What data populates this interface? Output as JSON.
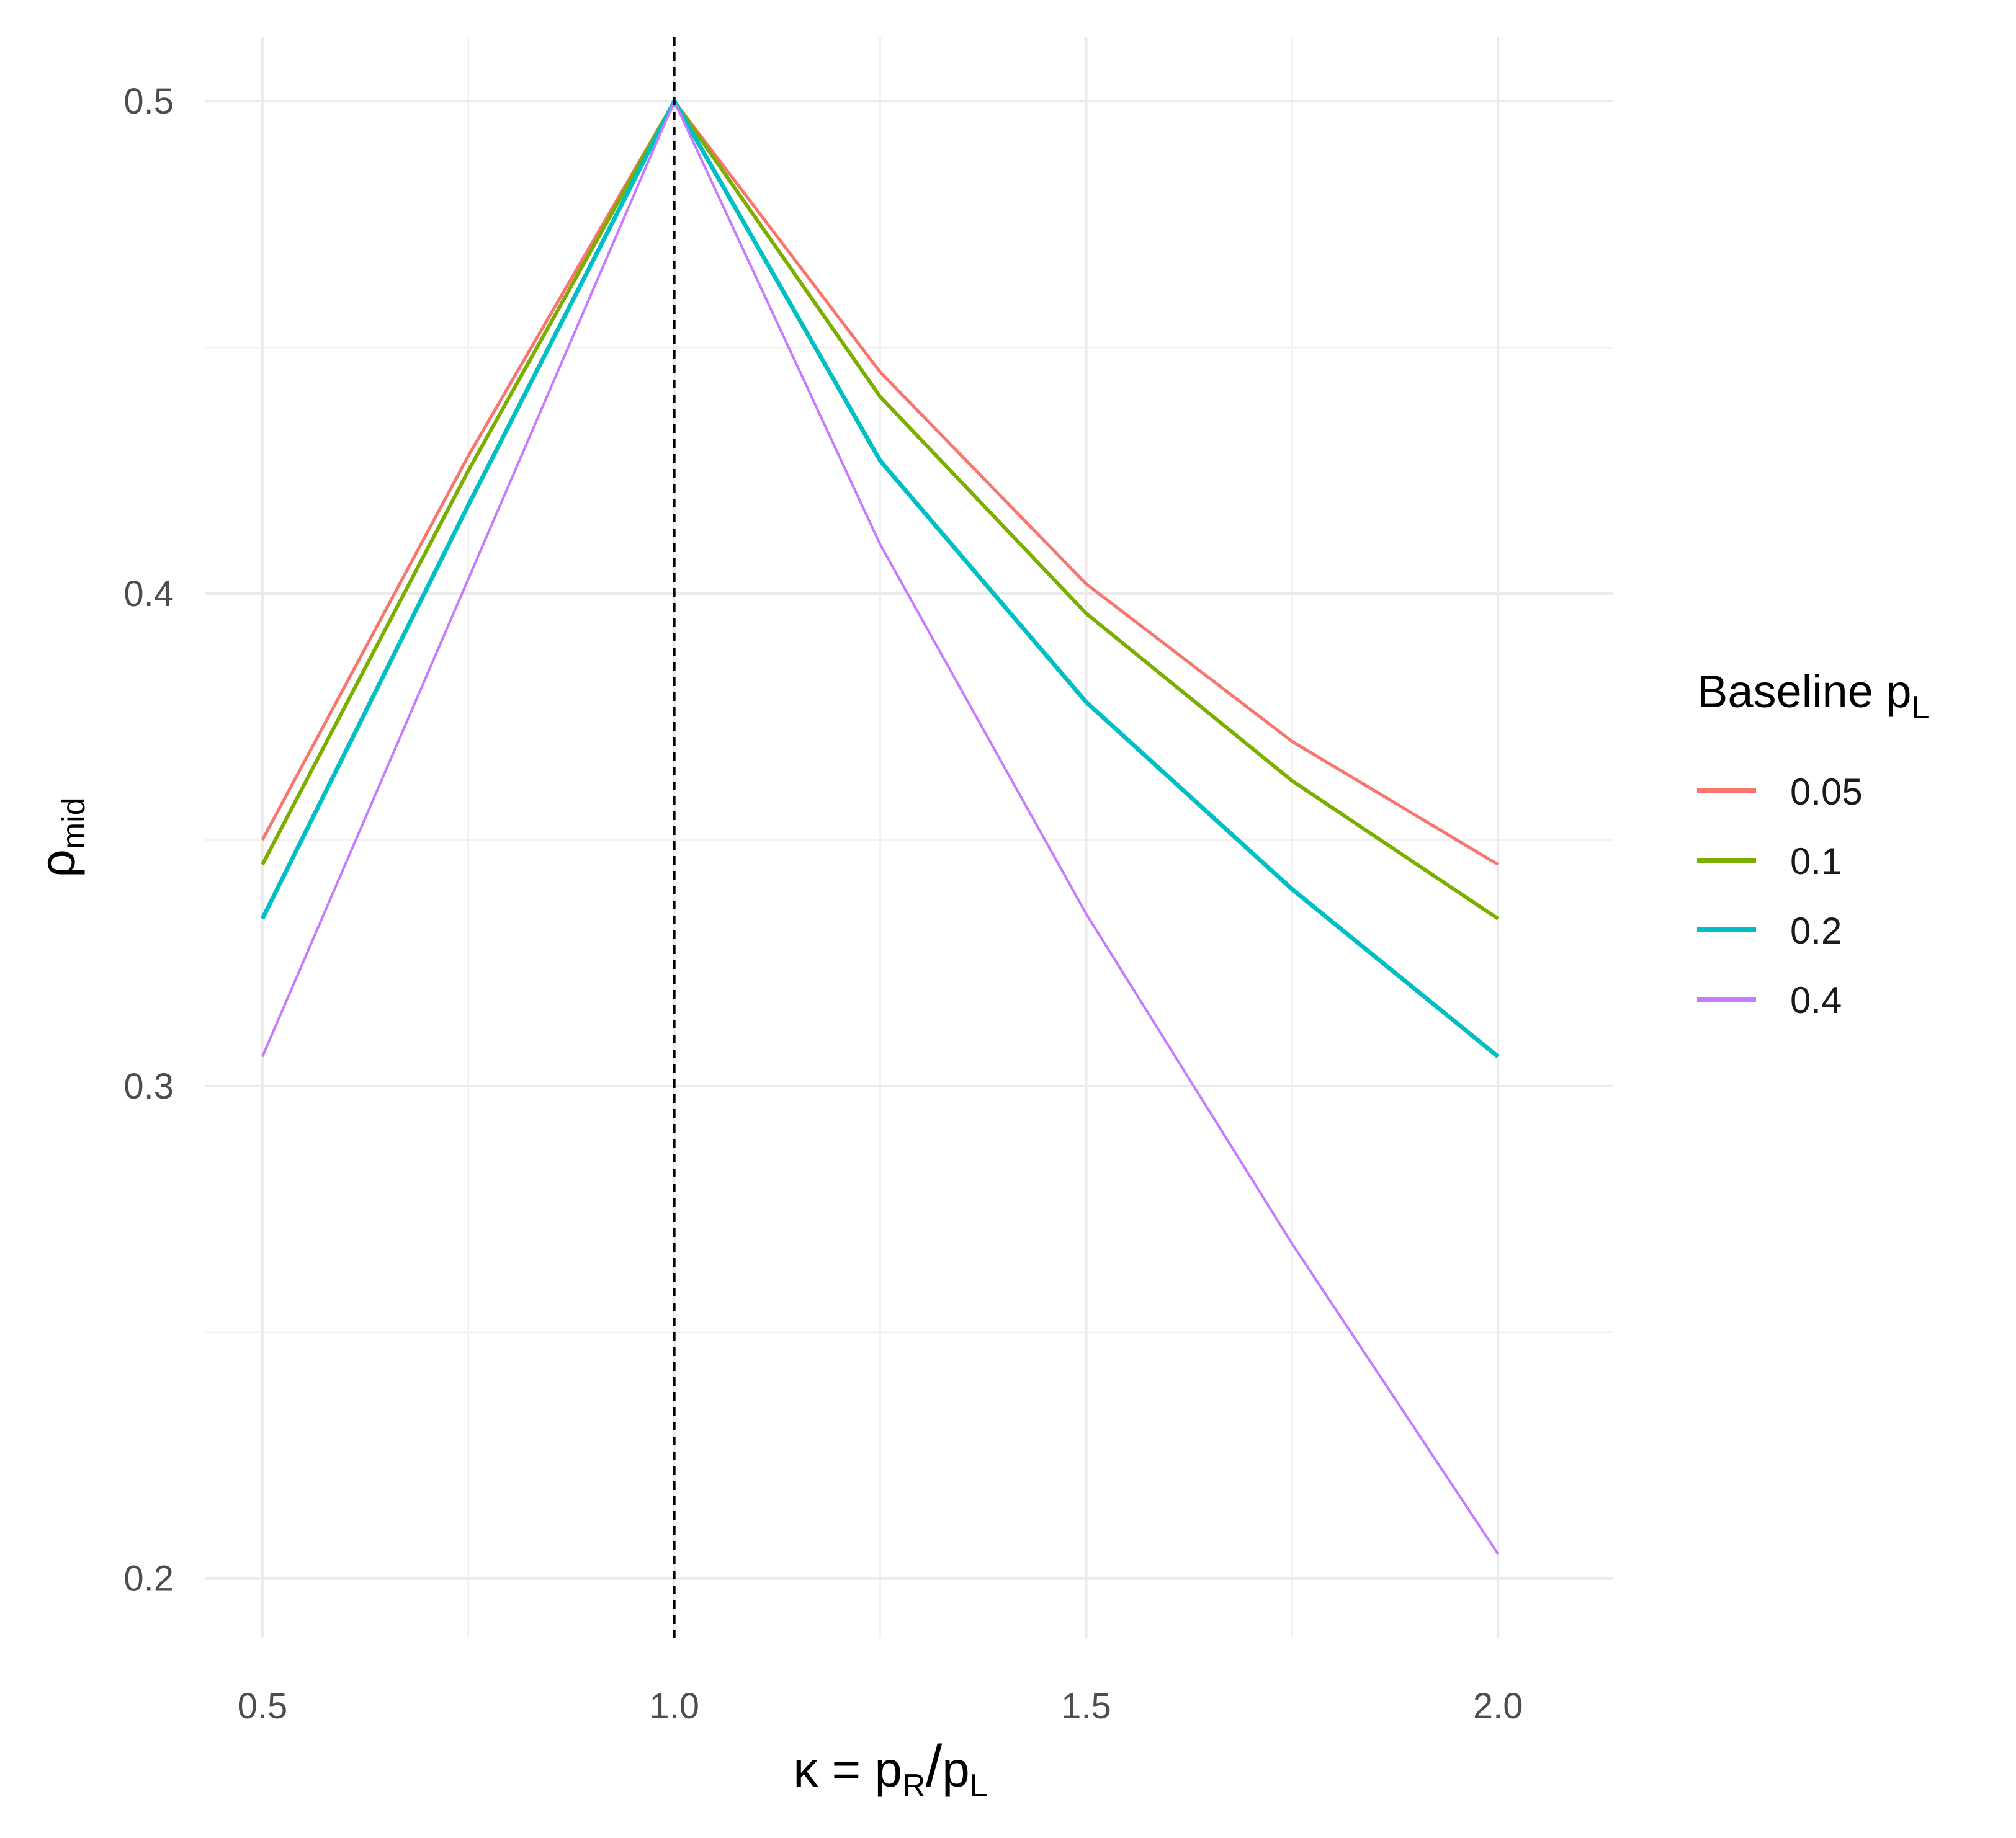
{
  "chart_data": {
    "type": "line",
    "title": "",
    "xlabel": {
      "main": "κ = p",
      "sub1": "R",
      "slash": "/",
      "main2": "p",
      "sub2": "L"
    },
    "ylabel": {
      "main": "ρ",
      "sub": "mid"
    },
    "xlim": [
      0.43,
      2.14
    ],
    "ylim": [
      0.188,
      0.513
    ],
    "x_ticks": [
      0.5,
      1.0,
      1.5,
      2.0
    ],
    "x_tick_labels": [
      "0.5",
      "1.0",
      "1.5",
      "2.0"
    ],
    "y_ticks": [
      0.2,
      0.3,
      0.4,
      0.5
    ],
    "y_tick_labels": [
      "0.2",
      "0.3",
      "0.4",
      "0.5"
    ],
    "x_minor": [
      0.75,
      1.25,
      1.75
    ],
    "y_minor": [
      0.25,
      0.35,
      0.45
    ],
    "grid": true,
    "vline": {
      "x": 1.0,
      "style": "dashed",
      "color": "#000000"
    },
    "legend": {
      "title_main": "Baseline p",
      "title_sub": "L",
      "position": "right"
    },
    "series": [
      {
        "name": "0.05",
        "color": "#F8766D",
        "x": [
          0.5,
          0.75,
          1.0,
          1.25,
          1.5,
          1.75,
          2.0
        ],
        "values": [
          0.35,
          0.428,
          0.5,
          0.445,
          0.402,
          0.37,
          0.345
        ]
      },
      {
        "name": "0.1",
        "color": "#7CAE00",
        "x": [
          0.5,
          0.75,
          1.0,
          1.25,
          1.5,
          1.75,
          2.0
        ],
        "values": [
          0.345,
          0.425,
          0.5,
          0.44,
          0.396,
          0.362,
          0.334
        ]
      },
      {
        "name": "0.2",
        "color": "#00BFC4",
        "x": [
          0.5,
          0.75,
          1.0,
          1.25,
          1.5,
          1.75,
          2.0
        ],
        "values": [
          0.334,
          0.418,
          0.5,
          0.427,
          0.378,
          0.34,
          0.306
        ]
      },
      {
        "name": "0.4",
        "color": "#C77CFF",
        "x": [
          0.5,
          0.75,
          1.0,
          1.25,
          1.5,
          1.75,
          2.0
        ],
        "values": [
          0.306,
          0.403,
          0.5,
          0.41,
          0.335,
          0.268,
          0.205
        ]
      }
    ]
  }
}
